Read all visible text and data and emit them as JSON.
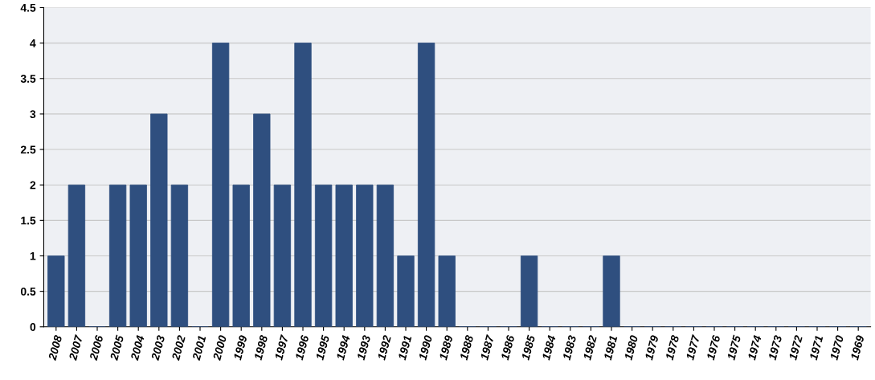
{
  "chart_data": {
    "type": "bar",
    "categories": [
      "2008",
      "2007",
      "2006",
      "2005",
      "2004",
      "2003",
      "2002",
      "2001",
      "2000",
      "1999",
      "1998",
      "1997",
      "1996",
      "1995",
      "1994",
      "1993",
      "1992",
      "1991",
      "1990",
      "1989",
      "1988",
      "1987",
      "1986",
      "1985",
      "1984",
      "1983",
      "1982",
      "1981",
      "1980",
      "1979",
      "1978",
      "1977",
      "1976",
      "1975",
      "1974",
      "1973",
      "1972",
      "1971",
      "1970",
      "1969"
    ],
    "values": [
      1,
      2,
      0,
      2,
      2,
      3,
      2,
      0,
      4,
      2,
      3,
      2,
      4,
      2,
      2,
      2,
      2,
      1,
      4,
      1,
      0,
      0,
      0,
      1,
      0,
      0,
      0,
      1,
      0,
      0,
      0,
      0,
      0,
      0,
      0,
      0,
      0,
      0,
      0,
      0
    ],
    "color": "#2f4f7f",
    "ylim": [
      0,
      4.5
    ],
    "yticks": [
      0,
      0.5,
      1,
      1.5,
      2,
      2.5,
      3,
      3.5,
      4,
      4.5
    ],
    "grid": "y"
  }
}
